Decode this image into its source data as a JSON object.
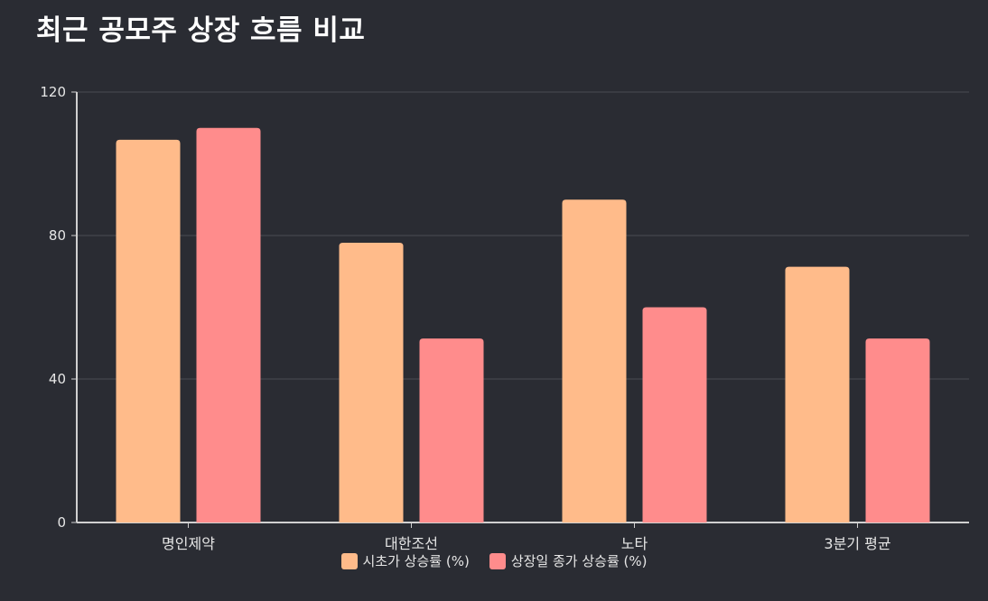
{
  "title": "최근 공모주 상장 흐름 비교",
  "chart_data": {
    "type": "bar",
    "title": "최근 공모주 상장 흐름 비교",
    "xlabel": "",
    "ylabel": "",
    "categories": [
      "명인제약",
      "대한조선",
      "노타",
      "3분기 평균"
    ],
    "series": [
      {
        "name": "시초가 상승률 (%)",
        "values": [
          106.7,
          78,
          90,
          71.3
        ],
        "color": "#ffbb8a"
      },
      {
        "name": "상장일 종가 상승률 (%)",
        "values": [
          110,
          51.3,
          60,
          51.3
        ],
        "color": "#ff8c8c"
      }
    ],
    "ylim": [
      0,
      120
    ],
    "yticks": [
      0,
      40,
      80,
      120
    ],
    "grid": true,
    "legend_position": "bottom-center"
  },
  "colors": {
    "background": "#2a2c33",
    "grid": "#4a4c53",
    "axis": "#d0d0d0"
  }
}
